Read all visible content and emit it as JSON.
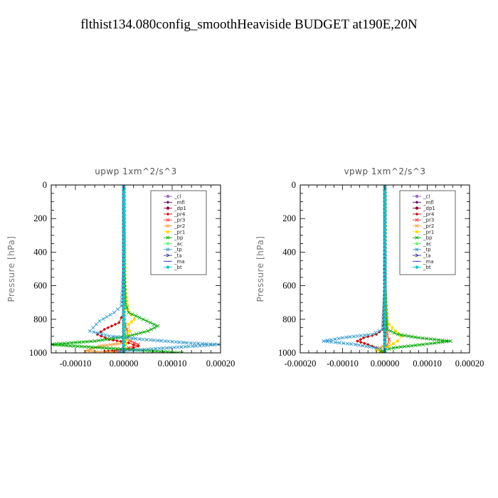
{
  "title": "flthist134.080config_smoothHeaviside  BUDGET at190E,20N",
  "chart_data": [
    {
      "type": "line",
      "title": "upwp   1xm^2/s^3",
      "ylabel": "Pressure [hPa]",
      "xlabel": "",
      "xlim": [
        -0.00015,
        0.0002
      ],
      "ylim": [
        1000,
        0
      ],
      "xticks": [
        -0.0001,
        0.0,
        0.0001,
        0.0002
      ],
      "xtick_labels": [
        "-0.00010",
        "0.00000",
        "0.00010",
        "0.00020"
      ],
      "yticks": [
        0,
        200,
        400,
        600,
        800,
        1000
      ],
      "ytick_labels": [
        "0",
        "200",
        "400",
        "600",
        "800",
        "1000"
      ],
      "legend_position": "top-right",
      "series": [
        {
          "name": "_cl",
          "color": "#9966cc",
          "marker": "circle",
          "x": [
            0,
            0,
            0,
            0
          ],
          "y": [
            0,
            500,
            900,
            1000
          ]
        },
        {
          "name": "_mfl",
          "color": "#660066",
          "marker": "diamond",
          "x": [
            0,
            0,
            0,
            0,
            0
          ],
          "y": [
            0,
            300,
            600,
            900,
            1000
          ]
        },
        {
          "name": "_dp1",
          "color": "#990033",
          "marker": "circle",
          "x": [
            0,
            0,
            0,
            0,
            0,
            0
          ],
          "y": [
            0,
            200,
            400,
            600,
            800,
            1000
          ]
        },
        {
          "name": "_pr4",
          "color": "#cc0000",
          "marker": "diamond",
          "x": [
            0,
            0,
            0,
            -5e-06,
            -1e-05,
            -4e-05,
            -5.5e-05,
            -3e-05,
            1e-05,
            3e-05,
            1e-05,
            -4e-05,
            -3e-05
          ],
          "y": [
            0,
            500,
            760,
            790,
            820,
            860,
            890,
            920,
            940,
            960,
            980,
            990,
            1000
          ]
        },
        {
          "name": "_pr3",
          "color": "#ff3333",
          "marker": "x",
          "x": [
            0,
            0,
            0,
            3e-06,
            6e-06,
            1e-05,
            6e-06,
            3e-05,
            1e-05,
            -2e-05,
            0
          ],
          "y": [
            0,
            500,
            800,
            830,
            860,
            900,
            920,
            950,
            970,
            990,
            1000
          ]
        },
        {
          "name": "_pr2",
          "color": "#ff9933",
          "marker": "x",
          "x": [
            0,
            0,
            0,
            4e-06,
            3e-06,
            2e-06,
            -5e-05,
            -8e-05,
            0
          ],
          "y": [
            0,
            600,
            850,
            880,
            910,
            940,
            960,
            990,
            1000
          ]
        },
        {
          "name": "_pr1",
          "color": "#ffdd00",
          "marker": "circle",
          "x": [
            0,
            2e-06,
            3e-06,
            8e-06,
            1.5e-05,
            2.2e-05,
            1e-05,
            1.2e-05,
            6e-06,
            2e-06
          ],
          "y": [
            0,
            300,
            600,
            740,
            770,
            800,
            830,
            870,
            920,
            1000
          ]
        },
        {
          "name": "_bp",
          "color": "#00aa00",
          "marker": "x",
          "x": [
            0,
            0,
            3e-06,
            1e-05,
            4e-05,
            7e-05,
            5e-05,
            1e-05,
            -6e-05,
            -0.000155,
            0.00012
          ],
          "y": [
            0,
            500,
            700,
            760,
            800,
            840,
            870,
            900,
            930,
            950,
            1000
          ]
        },
        {
          "name": "_ac",
          "color": "#66ff66",
          "marker": "circle",
          "x": [
            0,
            0,
            0,
            0,
            0
          ],
          "y": [
            0,
            300,
            600,
            900,
            1000
          ]
        },
        {
          "name": "_tp",
          "color": "#3399cc",
          "marker": "x",
          "x": [
            0,
            0,
            -5e-06,
            -2e-05,
            -5e-05,
            -7e-05,
            -3e-05,
            4e-05,
            0.00013,
            0.000195,
            -1e-05,
            0
          ],
          "y": [
            0,
            500,
            720,
            760,
            810,
            870,
            900,
            920,
            940,
            950,
            990,
            1000
          ]
        },
        {
          "name": "_ta",
          "color": "#333399",
          "marker": "arrow",
          "x": [
            0,
            0,
            0,
            0
          ],
          "y": [
            0,
            400,
            800,
            1000
          ]
        },
        {
          "name": "_ma",
          "color": "#3333cc",
          "marker": "dash",
          "x": [
            0,
            0,
            0
          ],
          "y": [
            0,
            500,
            1000
          ]
        },
        {
          "name": "_bt",
          "color": "#00cccc",
          "marker": "circle",
          "x": [
            0,
            0,
            0,
            0
          ],
          "y": [
            0,
            400,
            800,
            1000
          ]
        }
      ]
    },
    {
      "type": "line",
      "title": "vpwp   1xm^2/s^3",
      "ylabel": "Pressure [hPa]",
      "xlabel": "",
      "xlim": [
        -0.0002,
        0.0002
      ],
      "ylim": [
        1000,
        0
      ],
      "xticks": [
        -0.0002,
        -0.0001,
        0.0,
        0.0001,
        0.0002
      ],
      "xtick_labels": [
        "-0.00020",
        "-0.00010",
        "0.00000",
        "0.00010",
        "0.00020"
      ],
      "yticks": [
        0,
        200,
        400,
        600,
        800,
        1000
      ],
      "ytick_labels": [
        "0",
        "200",
        "400",
        "600",
        "800",
        "1000"
      ],
      "legend_position": "top-right",
      "series": [
        {
          "name": "_cl",
          "color": "#9966cc",
          "marker": "circle",
          "x": [
            0,
            0,
            0,
            0
          ],
          "y": [
            0,
            500,
            900,
            1000
          ]
        },
        {
          "name": "_mfl",
          "color": "#660066",
          "marker": "diamond",
          "x": [
            0,
            0,
            0,
            0,
            0
          ],
          "y": [
            0,
            300,
            600,
            900,
            1000
          ]
        },
        {
          "name": "_dp1",
          "color": "#990033",
          "marker": "circle",
          "x": [
            0,
            0,
            0,
            0,
            0,
            0
          ],
          "y": [
            0,
            200,
            400,
            600,
            800,
            1000
          ]
        },
        {
          "name": "_pr4",
          "color": "#cc0000",
          "marker": "diamond",
          "x": [
            0,
            0,
            -5e-06,
            -2e-05,
            -5e-05,
            -6.5e-05,
            -4e-05,
            -1e-05,
            0
          ],
          "y": [
            0,
            600,
            860,
            890,
            910,
            930,
            950,
            980,
            1000
          ]
        },
        {
          "name": "_pr3",
          "color": "#ff3333",
          "marker": "x",
          "x": [
            0,
            0,
            5e-06,
            1e-05,
            5e-06,
            0
          ],
          "y": [
            0,
            600,
            880,
            920,
            960,
            1000
          ]
        },
        {
          "name": "_pr2",
          "color": "#ff9933",
          "marker": "x",
          "x": [
            0,
            0,
            5e-06,
            1e-05,
            -2e-05,
            0
          ],
          "y": [
            0,
            700,
            900,
            940,
            980,
            1000
          ]
        },
        {
          "name": "_pr1",
          "color": "#ffdd00",
          "marker": "circle",
          "x": [
            0,
            0,
            5e-06,
            1e-05,
            2.5e-05,
            4e-05,
            3e-05,
            1e-05,
            -2e-05,
            0
          ],
          "y": [
            0,
            600,
            790,
            830,
            870,
            900,
            930,
            960,
            985,
            1000
          ]
        },
        {
          "name": "_bp",
          "color": "#00aa00",
          "marker": "x",
          "x": [
            0,
            0,
            5e-06,
            3e-05,
            8e-05,
            0.000155,
            9e-05,
            2e-05,
            -1e-05,
            0
          ],
          "y": [
            0,
            600,
            860,
            890,
            910,
            930,
            950,
            970,
            990,
            1000
          ]
        },
        {
          "name": "_ac",
          "color": "#66ff66",
          "marker": "circle",
          "x": [
            0,
            0,
            0,
            0
          ],
          "y": [
            0,
            400,
            800,
            1000
          ]
        },
        {
          "name": "_tp",
          "color": "#3399cc",
          "marker": "x",
          "x": [
            0,
            0,
            -5e-06,
            -3e-05,
            -0.0001,
            -0.000145,
            -7e-05,
            -1e-05,
            0
          ],
          "y": [
            0,
            600,
            860,
            890,
            910,
            930,
            950,
            975,
            1000
          ]
        },
        {
          "name": "_ta",
          "color": "#333399",
          "marker": "arrow",
          "x": [
            0,
            0,
            0,
            0
          ],
          "y": [
            0,
            400,
            800,
            1000
          ]
        },
        {
          "name": "_ma",
          "color": "#3333cc",
          "marker": "dash",
          "x": [
            0,
            0,
            0
          ],
          "y": [
            0,
            500,
            1000
          ]
        },
        {
          "name": "_bt",
          "color": "#00cccc",
          "marker": "circle",
          "x": [
            0,
            0,
            0,
            0
          ],
          "y": [
            0,
            400,
            800,
            1000
          ]
        }
      ]
    }
  ]
}
